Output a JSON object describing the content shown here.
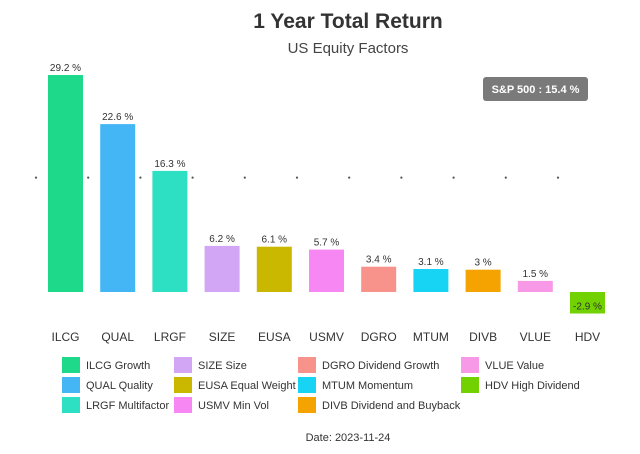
{
  "chart_data": {
    "type": "bar",
    "title": "1 Year Total Return",
    "subtitle": "US Equity Factors",
    "categories": [
      "ILCG",
      "QUAL",
      "LRGF",
      "SIZE",
      "EUSA",
      "USMV",
      "DGRO",
      "MTUM",
      "DIVB",
      "VLUE",
      "HDV"
    ],
    "values": [
      29.2,
      22.6,
      16.3,
      6.2,
      6.1,
      5.7,
      3.4,
      3.1,
      3,
      1.5,
      -2.9
    ],
    "data_labels": [
      "29.2 %",
      "22.6 %",
      "16.3 %",
      "6.2 %",
      "6.1 %",
      "5.7 %",
      "3.4 %",
      "3.1 %",
      "3 %",
      "1.5 %",
      "-2.9 %"
    ],
    "colors": [
      "#1fd98a",
      "#45b6f5",
      "#2ee0c3",
      "#d3a6f5",
      "#c9b700",
      "#f787f2",
      "#f7938a",
      "#17d4f5",
      "#f5a300",
      "#f799e6",
      "#72d100"
    ],
    "reference_line": {
      "label": "S&P 500 : 15.4 %",
      "value": 15.4
    },
    "legend": [
      "ILCG Growth",
      "SIZE Size",
      "DGRO Dividend Growth",
      "VLUE Value",
      "QUAL Quality",
      "EUSA Equal Weight",
      "MTUM Momentum",
      "HDV High Dividend",
      "LRGF Multifactor",
      "USMV Min Vol",
      "DIVB Dividend and Buyback"
    ],
    "legend_colors": [
      "#1fd98a",
      "#d3a6f5",
      "#f7938a",
      "#f799e6",
      "#45b6f5",
      "#c9b700",
      "#17d4f5",
      "#72d100",
      "#2ee0c3",
      "#f787f2",
      "#f5a300"
    ],
    "legend_placement": "bottom",
    "grid": false,
    "date": "Date: 2023-11-24"
  }
}
